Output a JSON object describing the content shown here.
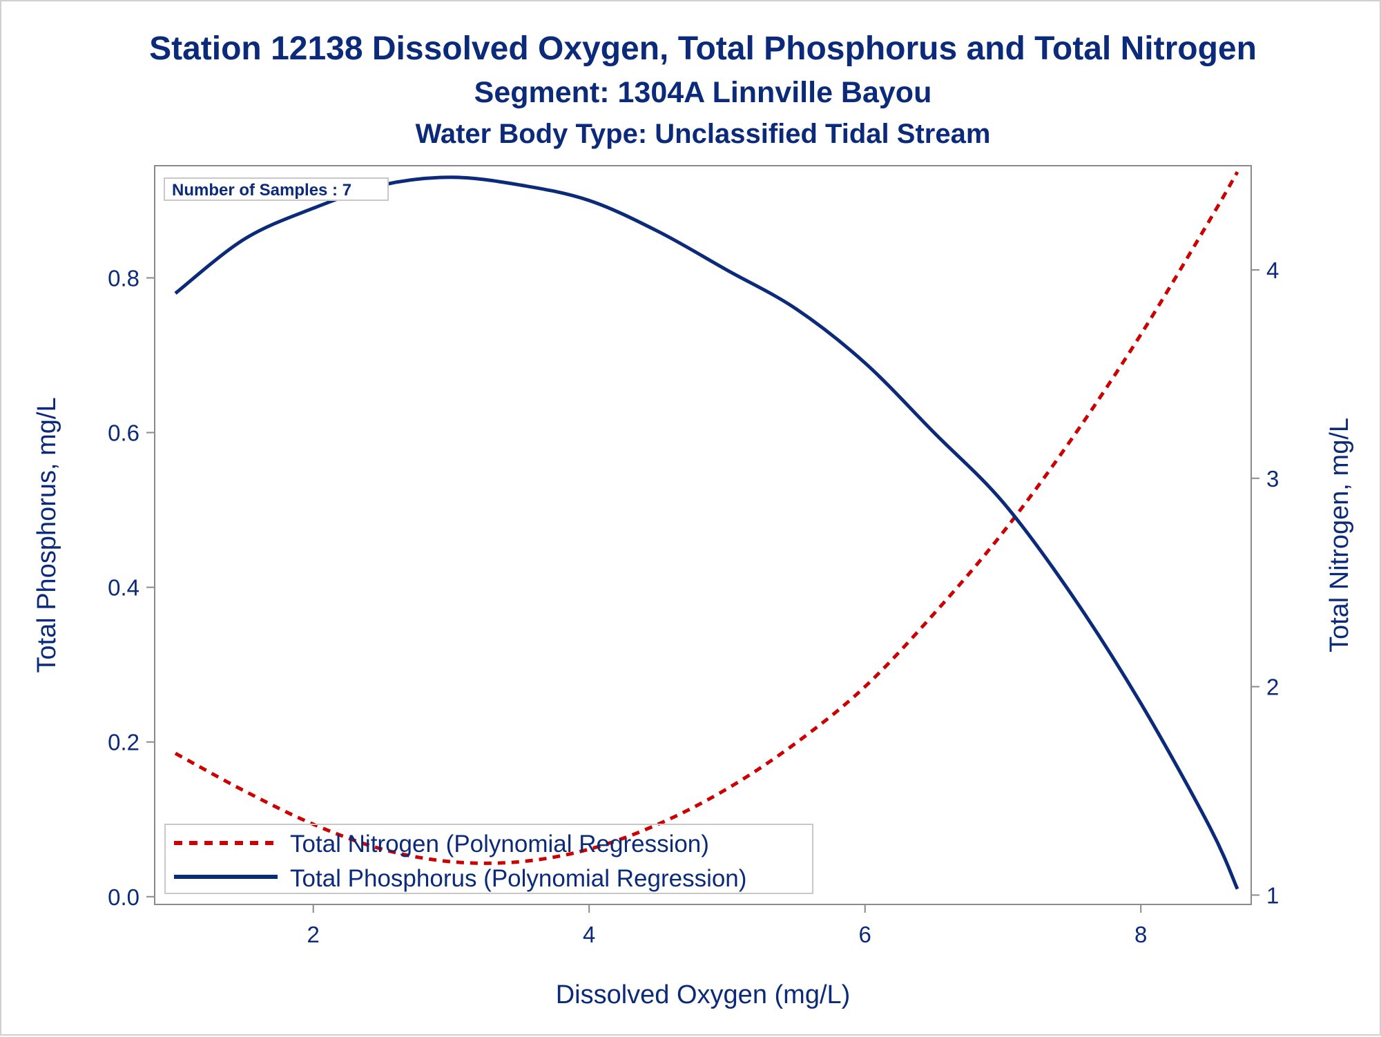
{
  "chart_data": {
    "type": "line",
    "title": "Station 12138  Dissolved Oxygen, Total Phosphorus and Total Nitrogen",
    "subtitle": "Segment: 1304A  Linnville Bayou",
    "subtitle2": "Water Body Type: Unclassified Tidal Stream",
    "xlabel": "Dissolved Oxygen (mg/L)",
    "ylabel": "Total Phosphorus, mg/L",
    "y2label": "Total Nitrogen, mg/L",
    "xlim": [
      0.85,
      8.8
    ],
    "ylim": [
      -0.01,
      0.945
    ],
    "y2lim": [
      0.955,
      4.5
    ],
    "xticks": [
      "2",
      "4",
      "6",
      "8"
    ],
    "yticks": [
      "0.0",
      "0.2",
      "0.4",
      "0.6",
      "0.8"
    ],
    "y2ticks": [
      "1",
      "2",
      "3",
      "4"
    ],
    "inset_label": "Number of Samples : 7",
    "legend_position": "bottom-left",
    "grid": false,
    "series": [
      {
        "name": "Total Nitrogen (Polynomial Regression)",
        "axis": "right",
        "color": "#cc0000",
        "dash": "dashed",
        "x": [
          1.0,
          1.5,
          2.0,
          2.5,
          3.0,
          3.5,
          4.0,
          4.5,
          5.0,
          5.5,
          6.0,
          6.5,
          7.0,
          7.5,
          8.0,
          8.5,
          8.7
        ],
        "values": [
          1.68,
          1.5,
          1.34,
          1.22,
          1.16,
          1.16,
          1.22,
          1.34,
          1.51,
          1.73,
          2.0,
          2.35,
          2.74,
          3.19,
          3.69,
          4.24,
          4.47
        ]
      },
      {
        "name": "Total Phosphorus (Polynomial Regression)",
        "axis": "left",
        "color": "#0b2a7a",
        "dash": "solid",
        "x": [
          1.0,
          1.5,
          2.0,
          2.5,
          3.0,
          3.5,
          4.0,
          4.5,
          5.0,
          5.5,
          6.0,
          6.5,
          7.0,
          7.5,
          8.0,
          8.5,
          8.7
        ],
        "values": [
          0.78,
          0.85,
          0.89,
          0.92,
          0.93,
          0.92,
          0.9,
          0.86,
          0.81,
          0.76,
          0.69,
          0.6,
          0.51,
          0.39,
          0.25,
          0.09,
          0.01
        ]
      }
    ]
  }
}
